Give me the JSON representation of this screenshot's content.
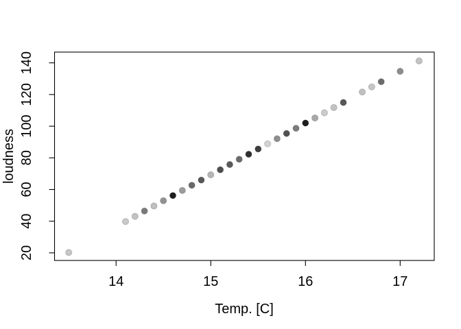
{
  "figure": {
    "background": "#ffffff",
    "frame_color": "#000000",
    "text_color": "#000000"
  },
  "chart_data": {
    "type": "scatter",
    "title": "",
    "xlabel": "Temp. [C]",
    "ylabel": "loudness",
    "x_ticks": [
      14,
      15,
      16,
      17
    ],
    "y_ticks": [
      20,
      40,
      60,
      80,
      100,
      120,
      140
    ],
    "xlim": [
      13.35,
      17.36
    ],
    "ylim": [
      15.2,
      146.8
    ],
    "grid": false,
    "legend": "none",
    "marker": "filled-circle",
    "points": [
      {
        "x": 13.5,
        "y": 20.2,
        "color": "#c6c6c6"
      },
      {
        "x": 14.1,
        "y": 39.8,
        "color": "#c9c9c9"
      },
      {
        "x": 14.2,
        "y": 43.1,
        "color": "#c3c3c3"
      },
      {
        "x": 14.3,
        "y": 46.4,
        "color": "#7a7a7a"
      },
      {
        "x": 14.4,
        "y": 49.6,
        "color": "#bfbfbf"
      },
      {
        "x": 14.5,
        "y": 52.9,
        "color": "#919191"
      },
      {
        "x": 14.6,
        "y": 56.2,
        "color": "#1f1f1f"
      },
      {
        "x": 14.7,
        "y": 59.4,
        "color": "#9b9b9b"
      },
      {
        "x": 14.8,
        "y": 62.7,
        "color": "#696969"
      },
      {
        "x": 14.9,
        "y": 66.0,
        "color": "#585858"
      },
      {
        "x": 15.0,
        "y": 69.3,
        "color": "#b6b6b6"
      },
      {
        "x": 15.1,
        "y": 72.5,
        "color": "#4e4e4e"
      },
      {
        "x": 15.2,
        "y": 75.8,
        "color": "#5a5a5a"
      },
      {
        "x": 15.3,
        "y": 79.1,
        "color": "#6c6c6c"
      },
      {
        "x": 15.4,
        "y": 82.3,
        "color": "#303030"
      },
      {
        "x": 15.5,
        "y": 85.6,
        "color": "#3e3e3e"
      },
      {
        "x": 15.6,
        "y": 88.9,
        "color": "#d2d2d2"
      },
      {
        "x": 15.7,
        "y": 92.1,
        "color": "#8f8f8f"
      },
      {
        "x": 15.8,
        "y": 95.4,
        "color": "#515151"
      },
      {
        "x": 15.9,
        "y": 98.7,
        "color": "#7d7d7d"
      },
      {
        "x": 16.0,
        "y": 102.0,
        "color": "#1e1e1e"
      },
      {
        "x": 16.1,
        "y": 105.2,
        "color": "#a9a9a9"
      },
      {
        "x": 16.2,
        "y": 108.5,
        "color": "#cbcbcb"
      },
      {
        "x": 16.3,
        "y": 111.8,
        "color": "#c3c3c3"
      },
      {
        "x": 16.4,
        "y": 115.0,
        "color": "#575757"
      },
      {
        "x": 16.6,
        "y": 121.6,
        "color": "#c0c0c0"
      },
      {
        "x": 16.7,
        "y": 124.8,
        "color": "#c6c6c6"
      },
      {
        "x": 16.8,
        "y": 128.1,
        "color": "#6c6c6c"
      },
      {
        "x": 17.0,
        "y": 134.7,
        "color": "#8c8c8c"
      },
      {
        "x": 17.2,
        "y": 141.2,
        "color": "#c3c3c3"
      }
    ]
  }
}
